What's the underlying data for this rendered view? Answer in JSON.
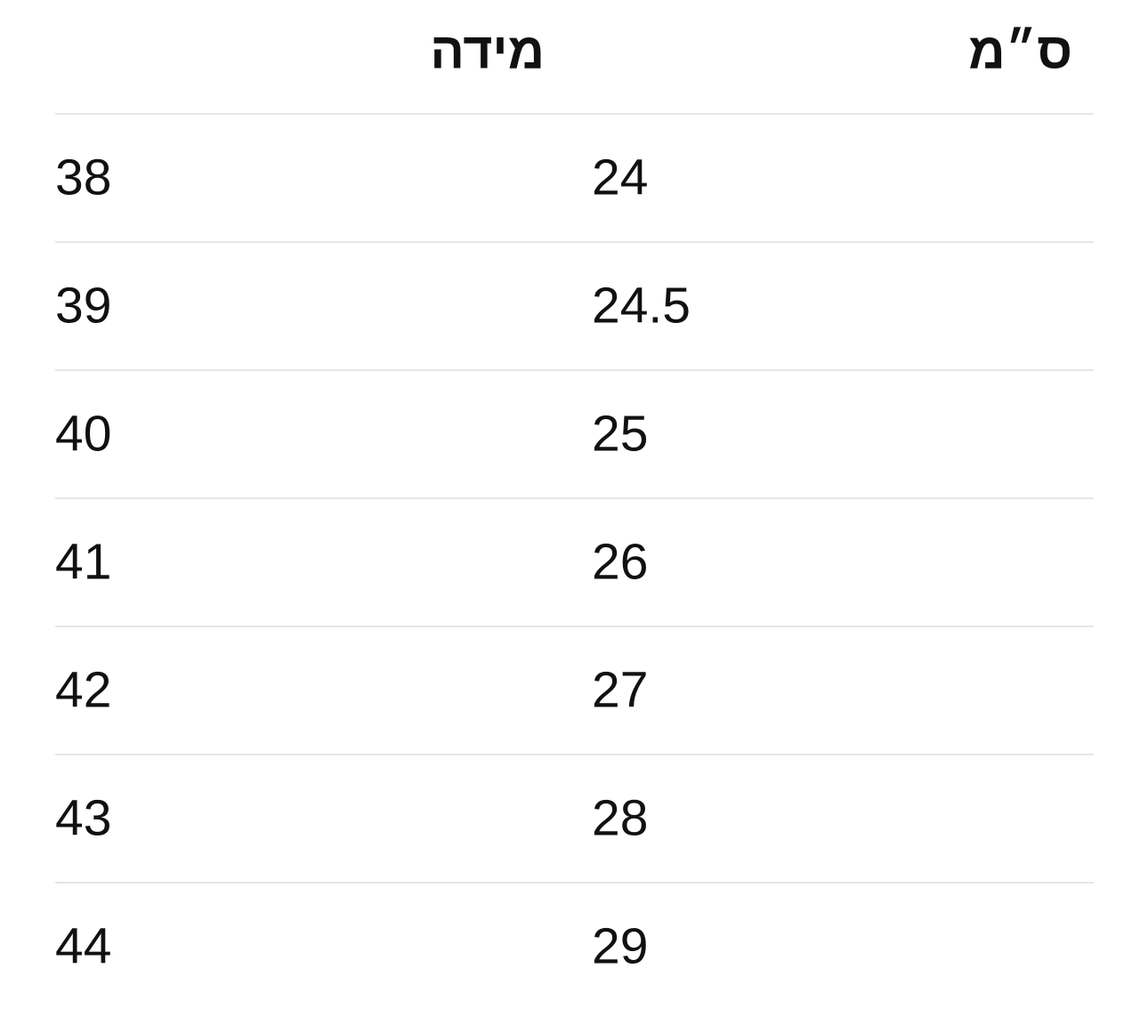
{
  "table": {
    "header": [
      "ס״מ",
      "מידה"
    ],
    "rows": [
      [
        24,
        38
      ],
      [
        24.5,
        39
      ],
      [
        25,
        40
      ],
      [
        26,
        41
      ],
      [
        27,
        42
      ],
      [
        28,
        43
      ],
      [
        29,
        44
      ]
    ]
  }
}
